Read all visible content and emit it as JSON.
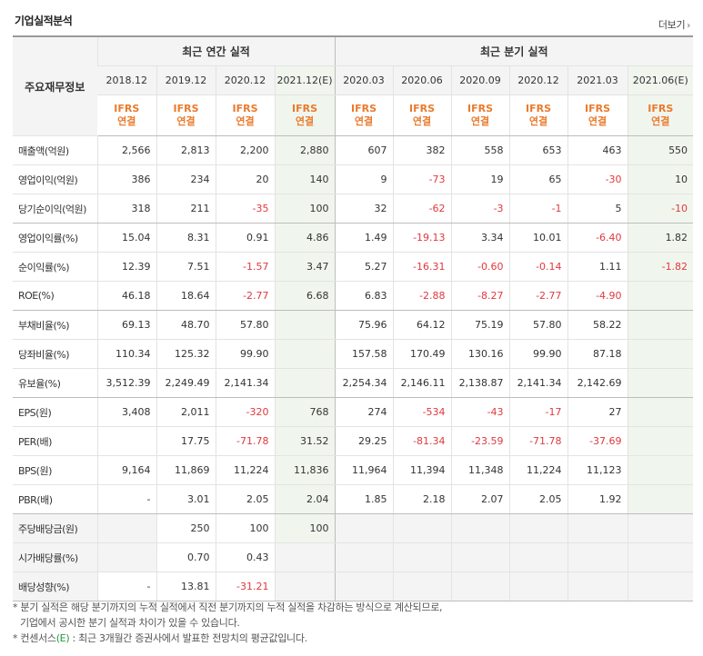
{
  "header": {
    "title": "기업실적분석",
    "more_label": "더보기",
    "more_icon": "chevron-right-icon"
  },
  "table": {
    "row_header_label": "주요재무정보",
    "annual_group_label": "최근 연간 실적",
    "quarter_group_label": "최근 분기 실적",
    "periods": [
      "2018.12",
      "2019.12",
      "2020.12",
      "2021.12(E)",
      "2020.03",
      "2020.06",
      "2020.09",
      "2020.12",
      "2021.03",
      "2021.06(E)"
    ],
    "ifrs_line1": "IFRS",
    "ifrs_line2": "연결",
    "rows": [
      {
        "label": "매출액(억원)",
        "values": [
          "2,566",
          "2,813",
          "2,200",
          "2,880",
          "607",
          "382",
          "558",
          "653",
          "463",
          "550"
        ]
      },
      {
        "label": "영업이익(억원)",
        "values": [
          "386",
          "234",
          "20",
          "140",
          "9",
          "-73",
          "19",
          "65",
          "-30",
          "10"
        ]
      },
      {
        "label": "당기순이익(억원)",
        "values": [
          "318",
          "211",
          "-35",
          "100",
          "32",
          "-62",
          "-3",
          "-1",
          "5",
          "-10"
        ]
      },
      {
        "label": "영업이익률(%)",
        "values": [
          "15.04",
          "8.31",
          "0.91",
          "4.86",
          "1.49",
          "-19.13",
          "3.34",
          "10.01",
          "-6.40",
          "1.82"
        ]
      },
      {
        "label": "순이익률(%)",
        "values": [
          "12.39",
          "7.51",
          "-1.57",
          "3.47",
          "5.27",
          "-16.31",
          "-0.60",
          "-0.14",
          "1.11",
          "-1.82"
        ]
      },
      {
        "label": "ROE(%)",
        "values": [
          "46.18",
          "18.64",
          "-2.77",
          "6.68",
          "6.83",
          "-2.88",
          "-8.27",
          "-2.77",
          "-4.90",
          ""
        ]
      },
      {
        "label": "부채비율(%)",
        "values": [
          "69.13",
          "48.70",
          "57.80",
          "",
          "75.96",
          "64.12",
          "75.19",
          "57.80",
          "58.22",
          ""
        ]
      },
      {
        "label": "당좌비율(%)",
        "values": [
          "110.34",
          "125.32",
          "99.90",
          "",
          "157.58",
          "170.49",
          "130.16",
          "99.90",
          "87.18",
          ""
        ]
      },
      {
        "label": "유보율(%)",
        "values": [
          "3,512.39",
          "2,249.49",
          "2,141.34",
          "",
          "2,254.34",
          "2,146.11",
          "2,138.87",
          "2,141.34",
          "2,142.69",
          ""
        ]
      },
      {
        "label": "EPS(원)",
        "values": [
          "3,408",
          "2,011",
          "-320",
          "768",
          "274",
          "-534",
          "-43",
          "-17",
          "27",
          ""
        ]
      },
      {
        "label": "PER(배)",
        "values": [
          "",
          "17.75",
          "-71.78",
          "31.52",
          "29.25",
          "-81.34",
          "-23.59",
          "-71.78",
          "-37.69",
          ""
        ]
      },
      {
        "label": "BPS(원)",
        "values": [
          "9,164",
          "11,869",
          "11,224",
          "11,836",
          "11,964",
          "11,394",
          "11,348",
          "11,224",
          "11,123",
          ""
        ]
      },
      {
        "label": "PBR(배)",
        "values": [
          "-",
          "3.01",
          "2.05",
          "2.04",
          "1.85",
          "2.18",
          "2.07",
          "2.05",
          "1.92",
          ""
        ]
      },
      {
        "label": "주당배당금(원)",
        "values": [
          "",
          "250",
          "100",
          "100",
          "",
          "",
          "",
          "",
          "",
          ""
        ]
      },
      {
        "label": "시가배당률(%)",
        "values": [
          "",
          "0.70",
          "0.43",
          "",
          "",
          "",
          "",
          "",
          "",
          ""
        ]
      },
      {
        "label": "배당성향(%)",
        "values": [
          "-",
          "13.81",
          "-31.21",
          "",
          "",
          "",
          "",
          "",
          "",
          ""
        ]
      }
    ]
  },
  "footer": {
    "note1": "* 분기 실적은 해당 분기까지의 누적 실적에서 직전 분기까지의 누적 실적을 차감하는 방식으로 계산되므로,",
    "note2": "기업에서 공시한 분기 실적과 차이가 있을 수 있습니다.",
    "note3_prefix": "* 컨센서스",
    "note3_e": "(E)",
    "note3_suffix": " : 최근 3개월간 증권사에서 발표한 전망치의 평균값입니다."
  },
  "colors": {
    "negative": "#e0393e",
    "ifrs": "#ea7a2c",
    "estimate_bg": "#f0f6ee",
    "header_bg": "#f4f4f4",
    "consensus_e": "#1f9a3c"
  }
}
